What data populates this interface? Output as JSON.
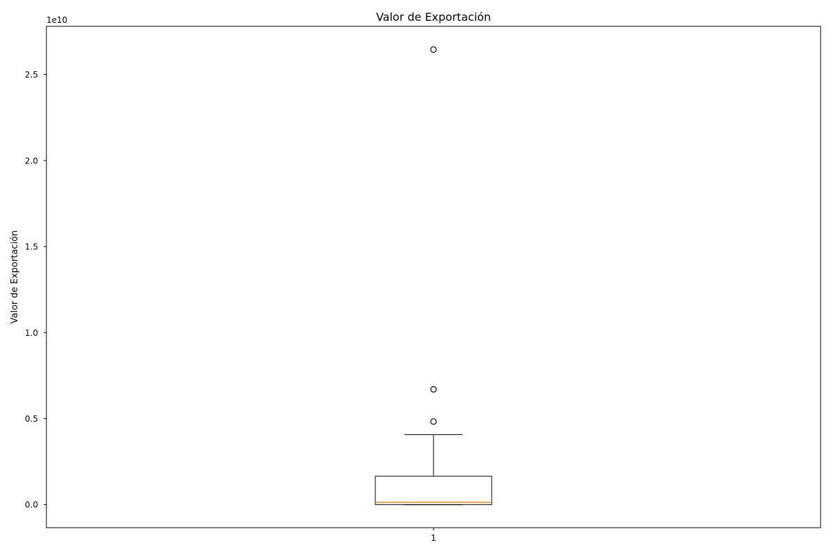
{
  "chart_data": {
    "type": "box",
    "title": "Valor de Exportación",
    "xlabel": "",
    "ylabel": "Valor de Exportación",
    "offset_label": "1e10",
    "categories": [
      "1"
    ],
    "ylim": [
      -1340000000,
      27800000000
    ],
    "yticks": [
      0,
      5000000000,
      10000000000,
      15000000000,
      20000000000,
      25000000000
    ],
    "ytick_labels": [
      "0.0",
      "0.5",
      "1.0",
      "1.5",
      "2.0",
      "2.5"
    ],
    "box": {
      "whisker_low": 0,
      "q1": 0,
      "median": 130000000,
      "q3": 1650000000,
      "whisker_high": 4070000000,
      "outliers": [
        4830000000,
        6700000000,
        26450000000
      ]
    },
    "grid": false,
    "colors": {
      "box": "#000000",
      "median": "#ff7f0e",
      "outlier": "#000000"
    }
  }
}
